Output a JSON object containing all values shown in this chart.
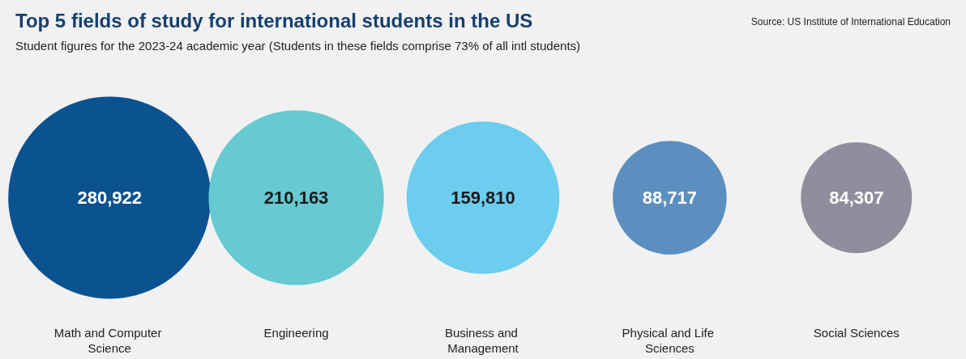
{
  "chart_data": {
    "type": "other",
    "title": "Top 5 fields of study for international students in the US",
    "subtitle": "Student figures for the 2023-24 academic year (Students in these fields comprise 73% of all intl students)",
    "annotations": [
      "Source: US Institute of International Education"
    ],
    "categories": [
      "Math and Computer Science",
      "Engineering",
      "Business and Management",
      "Physical and Life Sciences",
      "Social Sciences"
    ],
    "values": [
      280922,
      210163,
      159810,
      88717,
      84307
    ],
    "colors": [
      "#0b5390",
      "#67c9d1",
      "#6ccdee",
      "#5b8fbf",
      "#8f8e9c"
    ],
    "value_labels": [
      "280,922",
      "210,163",
      "159,810",
      "88,717",
      "84,307"
    ]
  }
}
